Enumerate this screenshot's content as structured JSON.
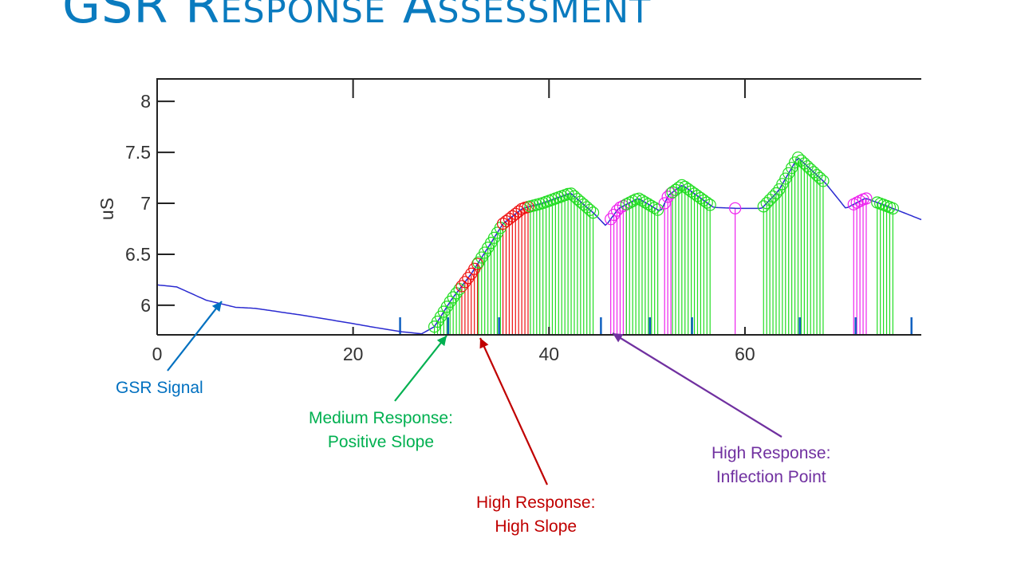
{
  "slide": {
    "title": "GSR Response Assessment"
  },
  "annotations": [
    {
      "lines": [
        "GSR Signal"
      ],
      "color": "#0070c0"
    },
    {
      "lines": [
        "Medium Response:",
        "Positive Slope"
      ],
      "color": "#00b050"
    },
    {
      "lines": [
        "High Response:",
        "High Slope"
      ],
      "color": "#c00000"
    },
    {
      "lines": [
        "High Response:",
        "Inflection Point"
      ],
      "color": "#7030a0"
    }
  ],
  "chart_data": {
    "type": "line",
    "title": "",
    "xlabel": "",
    "ylabel": "uS",
    "xlim": [
      0,
      78
    ],
    "ylim": [
      5.71,
      8.22
    ],
    "xticks": [
      "0",
      "20",
      "40",
      "60"
    ],
    "yticks": [
      "6",
      "6.5",
      "7",
      "7.5",
      "8"
    ],
    "grid": false,
    "signal": {
      "color": "#2a2ad0",
      "x": [
        0,
        2,
        5,
        8,
        10,
        15,
        20,
        23,
        25,
        27,
        28.3,
        30,
        32,
        34,
        35.3,
        37.3,
        39.3,
        42.2,
        44.6,
        45.8,
        47.1,
        49.1,
        51.4,
        52.2,
        53.6,
        56.8,
        59.3,
        61.7,
        63.4,
        65.4,
        68.2,
        70.3,
        72.3,
        74.3,
        78
      ],
      "y": [
        6.2,
        6.18,
        6.05,
        5.98,
        5.97,
        5.9,
        5.82,
        5.77,
        5.74,
        5.72,
        5.79,
        6.05,
        6.3,
        6.6,
        6.8,
        6.95,
        7.0,
        7.1,
        6.9,
        6.78,
        6.95,
        7.05,
        6.92,
        7.08,
        7.18,
        6.96,
        6.95,
        6.95,
        7.12,
        7.45,
        7.2,
        6.95,
        7.05,
        6.98,
        6.84
      ]
    },
    "response_segments": [
      {
        "category": "medium",
        "from": 28.3,
        "to": 31.1
      },
      {
        "category": "high-slope",
        "from": 31.1,
        "to": 32.8
      },
      {
        "category": "medium",
        "from": 32.8,
        "to": 35.3
      },
      {
        "category": "high-slope",
        "from": 35.3,
        "to": 38.1
      },
      {
        "category": "medium",
        "from": 38.1,
        "to": 44.6
      },
      {
        "category": "inflection",
        "from": 46.3,
        "to": 47.9
      },
      {
        "category": "medium",
        "from": 47.9,
        "to": 51.4
      },
      {
        "category": "inflection",
        "from": 51.8,
        "to": 52.6
      },
      {
        "category": "medium",
        "from": 52.6,
        "to": 56.7
      },
      {
        "category": "inflection",
        "from": 59.0,
        "to": 59.0
      },
      {
        "category": "medium",
        "from": 61.9,
        "to": 68.0
      },
      {
        "category": "inflection",
        "from": 71.1,
        "to": 72.6
      },
      {
        "category": "medium",
        "from": 73.5,
        "to": 75.4
      }
    ],
    "category_colors": {
      "medium": "#22dd22",
      "high-slope": "#ee1111",
      "inflection": "#ee22ee"
    },
    "event_markers": {
      "color": "#1060c0",
      "x": [
        24.8,
        29.7,
        34.9,
        45.3,
        50.3,
        54.6,
        65.6,
        71.3,
        77.0
      ]
    }
  }
}
